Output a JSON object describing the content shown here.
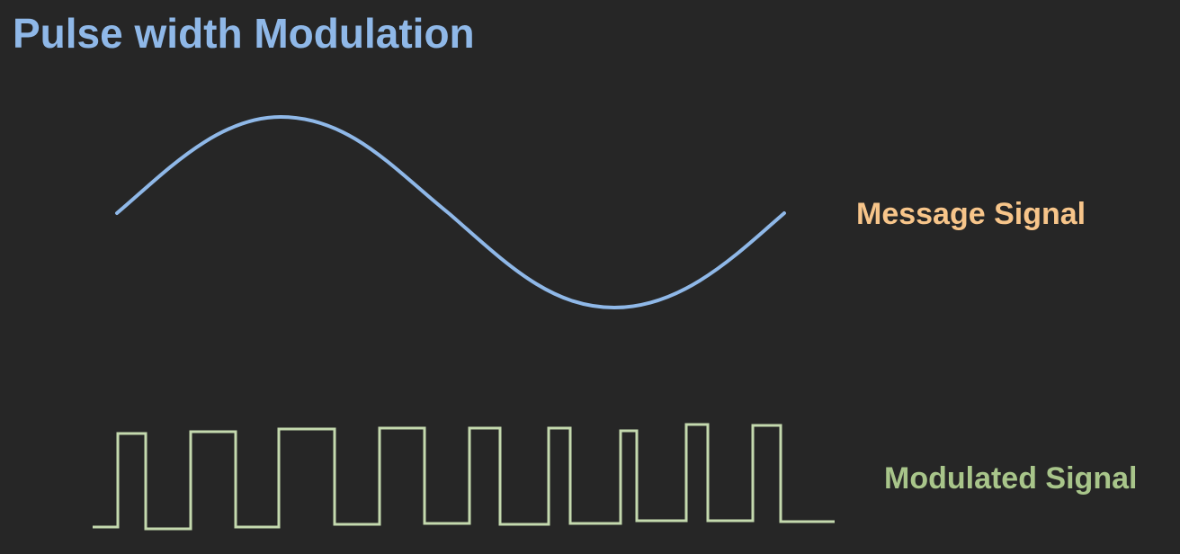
{
  "title": "Pulse width Modulation",
  "message_label": "Message Signal",
  "modulated_label": "Modulated Signal",
  "colors": {
    "background": "#262626",
    "title": "#8fb8e8",
    "message_wave": "#8fb8e8",
    "message_label": "#f7c58a",
    "modulated_wave": "#c4d9ae",
    "modulated_label": "#a8c58a"
  }
}
